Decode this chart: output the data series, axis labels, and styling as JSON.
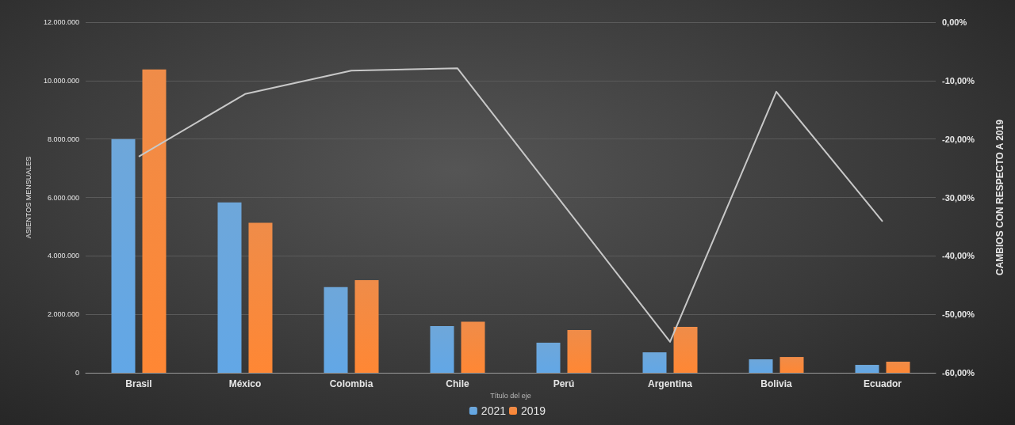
{
  "chart_data": {
    "type": "bar",
    "xlabel": "Título del eje",
    "ylabel": "ASIENTOS MENSUALES",
    "y2label": "CAMBIOS CON RESPECTO A 2019",
    "categories": [
      "Brasil",
      "México",
      "Colombia",
      "Chile",
      "Perú",
      "Argentina",
      "Bolivia",
      "Ecuador"
    ],
    "series": [
      {
        "name": "2021",
        "color": "#5b9bd5",
        "values": [
          8000000,
          5830000,
          2930000,
          1600000,
          1030000,
          700000,
          460000,
          270000
        ]
      },
      {
        "name": "2019",
        "color": "#ed7d31",
        "values": [
          10380000,
          5130000,
          3170000,
          1750000,
          1460000,
          1570000,
          540000,
          380000
        ]
      },
      {
        "type": "line",
        "axis": "y2",
        "color": "#c8c8c8",
        "values": [
          -23.0,
          -12.3,
          -8.3,
          -7.9,
          -31.3,
          -54.7,
          -11.9,
          -34.1
        ]
      }
    ],
    "ylim": [
      0,
      12000000
    ],
    "yticks": [
      {
        "value": 0,
        "label": "0"
      },
      {
        "value": 2000000,
        "label": "2.000.000"
      },
      {
        "value": 4000000,
        "label": "4.000.000"
      },
      {
        "value": 6000000,
        "label": "6.000.000"
      },
      {
        "value": 8000000,
        "label": "8.000.000"
      },
      {
        "value": 10000000,
        "label": "10.000.000"
      },
      {
        "value": 12000000,
        "label": "12.000.000"
      }
    ],
    "y2lim": [
      -60,
      0
    ],
    "y2ticks": [
      {
        "value": -60,
        "label": "-60,00%"
      },
      {
        "value": -50,
        "label": "-50,00%"
      },
      {
        "value": -40,
        "label": "-40,00%"
      },
      {
        "value": -30,
        "label": "-30,00%"
      },
      {
        "value": -20,
        "label": "-20,00%"
      },
      {
        "value": -10,
        "label": "-10,00%"
      },
      {
        "value": 0,
        "label": "0,00%"
      }
    ],
    "grid": "y",
    "legend": "bottom",
    "marker": "none"
  }
}
